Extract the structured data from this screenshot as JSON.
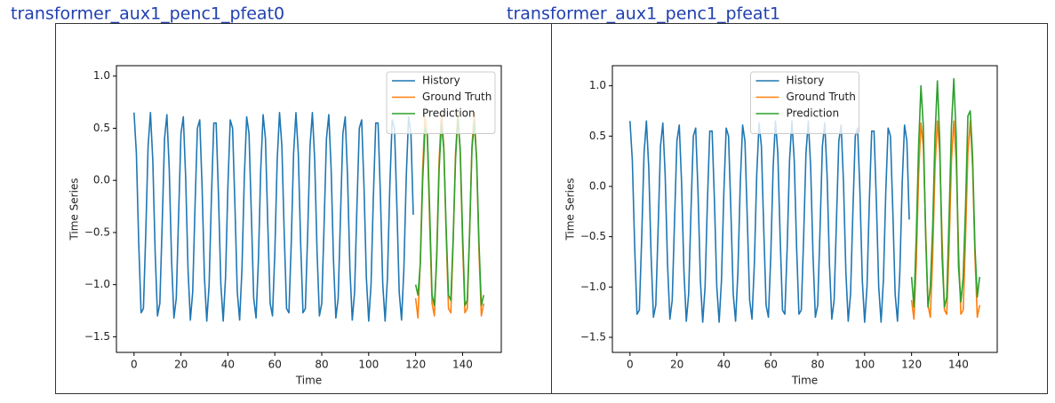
{
  "chart_data": [
    {
      "type": "line",
      "title": "transformer_aux1_penc1_pfeat0",
      "xlabel": "Time",
      "ylabel": "Time Series",
      "xlim": [
        -7.5,
        156.5
      ],
      "xticks": [
        0,
        20,
        40,
        60,
        80,
        100,
        120,
        140
      ],
      "ylim": [
        -1.65,
        1.1
      ],
      "yticks": [
        {
          "value": -1.5,
          "label": "−1.5"
        },
        {
          "value": -1.0,
          "label": "−1.0"
        },
        {
          "value": -0.5,
          "label": "−0.5"
        },
        {
          "value": 0.0,
          "label": "0.0"
        },
        0.5,
        {
          "value": 1.0,
          "label": "1.0"
        }
      ],
      "legend": "upper right",
      "series": [
        {
          "name": "History",
          "color": "#1f77b4",
          "x": [
            0,
            1,
            2,
            3,
            4,
            5,
            6,
            7,
            8,
            9,
            10,
            11,
            12,
            13,
            14,
            15,
            16,
            17,
            18,
            19,
            20,
            21,
            22,
            23,
            24,
            25,
            26,
            27,
            28,
            29,
            30,
            31,
            32,
            33,
            34,
            35,
            36,
            37,
            38,
            39,
            40,
            41,
            42,
            43,
            44,
            45,
            46,
            47,
            48,
            49,
            50,
            51,
            52,
            53,
            54,
            55,
            56,
            57,
            58,
            59,
            60,
            61,
            62,
            63,
            64,
            65,
            66,
            67,
            68,
            69,
            70,
            71,
            72,
            73,
            74,
            75,
            76,
            77,
            78,
            79,
            80,
            81,
            82,
            83,
            84,
            85,
            86,
            87,
            88,
            89,
            90,
            91,
            92,
            93,
            94,
            95,
            96,
            97,
            98,
            99,
            100,
            101,
            102,
            103,
            104,
            105,
            106,
            107,
            108,
            109,
            110,
            111,
            112,
            113,
            114,
            115,
            116,
            117,
            118,
            119
          ],
          "values": [
            0.65,
            0.26,
            -0.6,
            -1.27,
            -1.23,
            -0.51,
            0.33,
            0.65,
            0.19,
            -0.69,
            -1.3,
            -1.18,
            -0.42,
            0.4,
            0.63,
            0.11,
            -0.77,
            -1.32,
            -1.13,
            -0.33,
            0.45,
            0.61,
            0.03,
            -0.85,
            -1.34,
            -1.07,
            -0.24,
            0.5,
            0.58,
            -0.06,
            -0.93,
            -1.35,
            -1.0,
            -0.15,
            0.55,
            0.55,
            -0.15,
            -1.0,
            -1.35,
            -0.93,
            -0.06,
            0.58,
            0.5,
            -0.24,
            -1.07,
            -1.34,
            -0.85,
            0.03,
            0.61,
            0.45,
            -0.33,
            -1.13,
            -1.32,
            -0.77,
            0.11,
            0.63,
            0.4,
            -0.42,
            -1.18,
            -1.3,
            -0.69,
            0.19,
            0.65,
            0.33,
            -0.51,
            -1.23,
            -1.27,
            -0.6,
            0.26,
            0.65,
            0.26,
            -0.6,
            -1.27,
            -1.23,
            -0.51,
            0.33,
            0.65,
            0.19,
            -0.69,
            -1.3,
            -1.18,
            -0.42,
            0.4,
            0.63,
            0.11,
            -0.77,
            -1.32,
            -1.13,
            -0.33,
            0.45,
            0.61,
            0.03,
            -0.85,
            -1.34,
            -1.07,
            -0.24,
            0.5,
            0.58,
            -0.06,
            -0.93,
            -1.35,
            -1.0,
            -0.15,
            0.55,
            0.55,
            -0.15,
            -1.0,
            -1.35,
            -0.93,
            -0.06,
            0.58,
            0.5,
            -0.24,
            -1.07,
            -1.34,
            -0.85,
            0.03,
            0.61,
            0.45,
            -0.33
          ]
        },
        {
          "name": "Ground Truth",
          "color": "#ff7f0e",
          "x": [
            120,
            121,
            122,
            123,
            124,
            125,
            126,
            127,
            128,
            129,
            130,
            131,
            132,
            133,
            134,
            135,
            136,
            137,
            138,
            139,
            140,
            141,
            142,
            143,
            144,
            145,
            146,
            147,
            148,
            149
          ],
          "values": [
            -1.13,
            -1.32,
            -0.77,
            0.11,
            0.63,
            0.4,
            -0.42,
            -1.18,
            -1.3,
            -0.69,
            0.19,
            0.65,
            0.33,
            -0.51,
            -1.23,
            -1.27,
            -0.6,
            0.26,
            0.65,
            0.26,
            -0.6,
            -1.27,
            -1.23,
            -0.51,
            0.33,
            0.65,
            0.19,
            -0.69,
            -1.3,
            -1.18
          ]
        },
        {
          "name": "Prediction",
          "color": "#2ca02c",
          "x": [
            120,
            121,
            122,
            123,
            124,
            125,
            126,
            127,
            128,
            129,
            130,
            131,
            132,
            133,
            134,
            135,
            136,
            137,
            138,
            139,
            140,
            141,
            142,
            143,
            144,
            145,
            146,
            147,
            148,
            149
          ],
          "values": [
            -1.0,
            -1.1,
            -0.8,
            0.0,
            0.5,
            0.45,
            -0.3,
            -1.1,
            -1.2,
            -0.75,
            0.1,
            0.55,
            0.3,
            -0.45,
            -1.1,
            -1.15,
            -0.55,
            0.2,
            0.6,
            0.3,
            -0.5,
            -1.2,
            -1.15,
            -0.5,
            0.3,
            0.55,
            0.2,
            -0.6,
            -1.2,
            -1.1
          ]
        }
      ]
    },
    {
      "type": "line",
      "title": "transformer_aux1_penc1_pfeat1",
      "xlabel": "Time",
      "ylabel": "Time Series",
      "xlim": [
        -7.5,
        156.5
      ],
      "xticks": [
        0,
        20,
        40,
        60,
        80,
        100,
        120,
        140
      ],
      "ylim": [
        -1.65,
        1.2
      ],
      "yticks": [
        {
          "value": -1.5,
          "label": "−1.5"
        },
        {
          "value": -1.0,
          "label": "−1.0"
        },
        {
          "value": -0.5,
          "label": "−0.5"
        },
        {
          "value": 0.0,
          "label": "0.0"
        },
        0.5,
        {
          "value": 1.0,
          "label": "1.0"
        }
      ],
      "legend": "upper center",
      "series": [
        {
          "name": "History",
          "color": "#1f77b4",
          "x": [
            0,
            1,
            2,
            3,
            4,
            5,
            6,
            7,
            8,
            9,
            10,
            11,
            12,
            13,
            14,
            15,
            16,
            17,
            18,
            19,
            20,
            21,
            22,
            23,
            24,
            25,
            26,
            27,
            28,
            29,
            30,
            31,
            32,
            33,
            34,
            35,
            36,
            37,
            38,
            39,
            40,
            41,
            42,
            43,
            44,
            45,
            46,
            47,
            48,
            49,
            50,
            51,
            52,
            53,
            54,
            55,
            56,
            57,
            58,
            59,
            60,
            61,
            62,
            63,
            64,
            65,
            66,
            67,
            68,
            69,
            70,
            71,
            72,
            73,
            74,
            75,
            76,
            77,
            78,
            79,
            80,
            81,
            82,
            83,
            84,
            85,
            86,
            87,
            88,
            89,
            90,
            91,
            92,
            93,
            94,
            95,
            96,
            97,
            98,
            99,
            100,
            101,
            102,
            103,
            104,
            105,
            106,
            107,
            108,
            109,
            110,
            111,
            112,
            113,
            114,
            115,
            116,
            117,
            118,
            119
          ],
          "values": [
            0.65,
            0.26,
            -0.6,
            -1.27,
            -1.23,
            -0.51,
            0.33,
            0.65,
            0.19,
            -0.69,
            -1.3,
            -1.18,
            -0.42,
            0.4,
            0.63,
            0.11,
            -0.77,
            -1.32,
            -1.13,
            -0.33,
            0.45,
            0.61,
            0.03,
            -0.85,
            -1.34,
            -1.07,
            -0.24,
            0.5,
            0.58,
            -0.06,
            -0.93,
            -1.35,
            -1.0,
            -0.15,
            0.55,
            0.55,
            -0.15,
            -1.0,
            -1.35,
            -0.93,
            -0.06,
            0.58,
            0.5,
            -0.24,
            -1.07,
            -1.34,
            -0.85,
            0.03,
            0.61,
            0.45,
            -0.33,
            -1.13,
            -1.32,
            -0.77,
            0.11,
            0.63,
            0.4,
            -0.42,
            -1.18,
            -1.3,
            -0.69,
            0.19,
            0.65,
            0.33,
            -0.51,
            -1.23,
            -1.27,
            -0.6,
            0.26,
            0.65,
            0.26,
            -0.6,
            -1.27,
            -1.23,
            -0.51,
            0.33,
            0.65,
            0.19,
            -0.69,
            -1.3,
            -1.18,
            -0.42,
            0.4,
            0.63,
            0.11,
            -0.77,
            -1.32,
            -1.13,
            -0.33,
            0.45,
            0.61,
            0.03,
            -0.85,
            -1.34,
            -1.07,
            -0.24,
            0.5,
            0.58,
            -0.06,
            -0.93,
            -1.35,
            -1.0,
            -0.15,
            0.55,
            0.55,
            -0.15,
            -1.0,
            -1.35,
            -0.93,
            -0.06,
            0.58,
            0.5,
            -0.24,
            -1.07,
            -1.34,
            -0.85,
            0.03,
            0.61,
            0.45,
            -0.33
          ]
        },
        {
          "name": "Ground Truth",
          "color": "#ff7f0e",
          "x": [
            120,
            121,
            122,
            123,
            124,
            125,
            126,
            127,
            128,
            129,
            130,
            131,
            132,
            133,
            134,
            135,
            136,
            137,
            138,
            139,
            140,
            141,
            142,
            143,
            144,
            145,
            146,
            147,
            148,
            149
          ],
          "values": [
            -1.13,
            -1.32,
            -0.77,
            0.11,
            0.63,
            0.4,
            -0.42,
            -1.18,
            -1.3,
            -0.69,
            0.19,
            0.65,
            0.33,
            -0.51,
            -1.23,
            -1.27,
            -0.6,
            0.26,
            0.65,
            0.26,
            -0.6,
            -1.27,
            -1.23,
            -0.51,
            0.33,
            0.65,
            0.19,
            -0.69,
            -1.3,
            -1.18
          ]
        },
        {
          "name": "Prediction",
          "color": "#2ca02c",
          "x": [
            120,
            121,
            122,
            123,
            124,
            125,
            126,
            127,
            128,
            129,
            130,
            131,
            132,
            133,
            134,
            135,
            136,
            137,
            138,
            139,
            140,
            141,
            142,
            143,
            144,
            145,
            146,
            147,
            148,
            149
          ],
          "values": [
            -0.9,
            -1.2,
            -0.5,
            0.4,
            1.0,
            0.6,
            -0.5,
            -1.2,
            -1.0,
            -0.4,
            0.5,
            1.05,
            0.45,
            -0.7,
            -1.2,
            -1.1,
            -0.3,
            0.6,
            1.07,
            0.5,
            -0.8,
            -1.15,
            -0.9,
            -0.2,
            0.7,
            0.75,
            0.3,
            -0.6,
            -1.1,
            -0.9
          ]
        }
      ]
    }
  ]
}
